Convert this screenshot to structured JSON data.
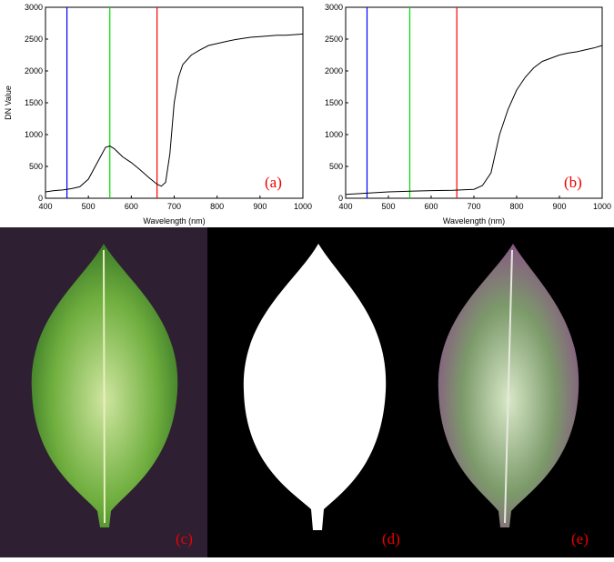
{
  "chart_data": [
    {
      "type": "line",
      "ylabel": "DN Value",
      "xlabel": "Wavelength (nm)",
      "annotation": "(a)",
      "xlim": [
        400,
        1000
      ],
      "xticks": [
        400,
        500,
        600,
        700,
        800,
        900,
        1000
      ],
      "ylim": [
        0,
        3000
      ],
      "yticks": [
        0,
        500,
        1000,
        1500,
        2000,
        2500,
        3000
      ],
      "vlines": [
        {
          "x": 450,
          "color": "#0000ff"
        },
        {
          "x": 550,
          "color": "#00dd00"
        },
        {
          "x": 660,
          "color": "#ff0000"
        }
      ],
      "series": [
        {
          "color": "#000000",
          "x": [
            400,
            420,
            440,
            460,
            480,
            500,
            520,
            540,
            550,
            560,
            580,
            600,
            620,
            640,
            660,
            670,
            680,
            690,
            700,
            710,
            720,
            740,
            760,
            780,
            800,
            820,
            840,
            860,
            880,
            900,
            920,
            940,
            960,
            980,
            1000
          ],
          "values": [
            100,
            120,
            130,
            150,
            180,
            300,
            550,
            800,
            820,
            780,
            650,
            560,
            450,
            330,
            220,
            190,
            250,
            700,
            1500,
            1900,
            2100,
            2250,
            2330,
            2400,
            2430,
            2460,
            2490,
            2510,
            2530,
            2540,
            2550,
            2560,
            2560,
            2570,
            2580
          ]
        }
      ]
    },
    {
      "type": "line",
      "xlabel": "Wavelength (nm)",
      "annotation": "(b)",
      "xlim": [
        400,
        1000
      ],
      "xticks": [
        400,
        500,
        600,
        700,
        800,
        900,
        1000
      ],
      "ylim": [
        0,
        3000
      ],
      "yticks": [
        0,
        500,
        1000,
        1500,
        2000,
        2500,
        3000
      ],
      "vlines": [
        {
          "x": 450,
          "color": "#0000ff"
        },
        {
          "x": 550,
          "color": "#00dd00"
        },
        {
          "x": 660,
          "color": "#ff0000"
        }
      ],
      "series": [
        {
          "color": "#000000",
          "x": [
            400,
            450,
            500,
            550,
            600,
            650,
            700,
            720,
            740,
            750,
            760,
            780,
            800,
            820,
            840,
            860,
            880,
            900,
            920,
            940,
            960,
            980,
            1000
          ],
          "values": [
            60,
            80,
            100,
            110,
            120,
            125,
            140,
            200,
            400,
            700,
            1000,
            1400,
            1700,
            1900,
            2050,
            2150,
            2200,
            2250,
            2280,
            2300,
            2330,
            2360,
            2400
          ]
        }
      ]
    }
  ],
  "images": [
    {
      "label": "(c)"
    },
    {
      "label": "(d)"
    },
    {
      "label": "(e)"
    }
  ]
}
